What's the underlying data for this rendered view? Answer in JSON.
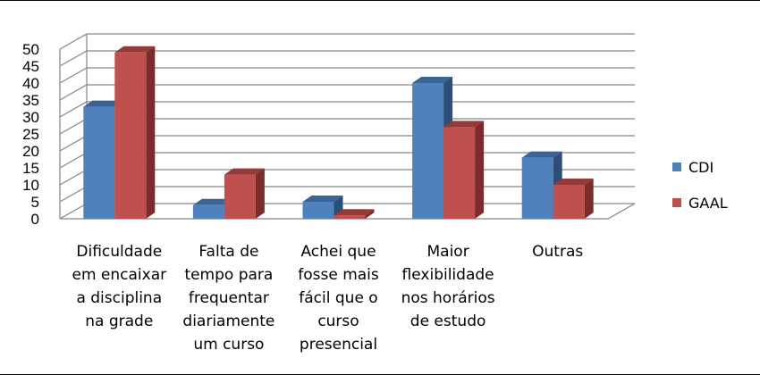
{
  "chart_data": {
    "type": "bar",
    "categories": [
      [
        "Dificuldade",
        "em encaixar",
        "a disciplina",
        "na grade"
      ],
      [
        "Falta de",
        "tempo para",
        "frequentar",
        "diariamente",
        "um curso"
      ],
      [
        "Achei que",
        "fosse mais",
        "fácil que o",
        "curso",
        "presencial"
      ],
      [
        "Maior",
        "flexibilidade",
        "nos horários",
        "de estudo"
      ],
      [
        "Outras"
      ]
    ],
    "series": [
      {
        "name": "CDI",
        "values": [
          33,
          4,
          5,
          40,
          18
        ]
      },
      {
        "name": "GAAL",
        "values": [
          49,
          13,
          1,
          27,
          10
        ]
      }
    ],
    "ylim": [
      0,
      50
    ],
    "yticks": [
      0,
      5,
      10,
      15,
      20,
      25,
      30,
      35,
      40,
      45,
      50
    ],
    "grid": true,
    "legend": "right",
    "colors": {
      "CDI": {
        "front": "#4F81BD",
        "side": "#2C4D75",
        "top": "#3A6496"
      },
      "GAAL": {
        "front": "#C0504D",
        "side": "#7B2C2A",
        "top": "#953A38"
      },
      "grid": "#868686"
    }
  }
}
